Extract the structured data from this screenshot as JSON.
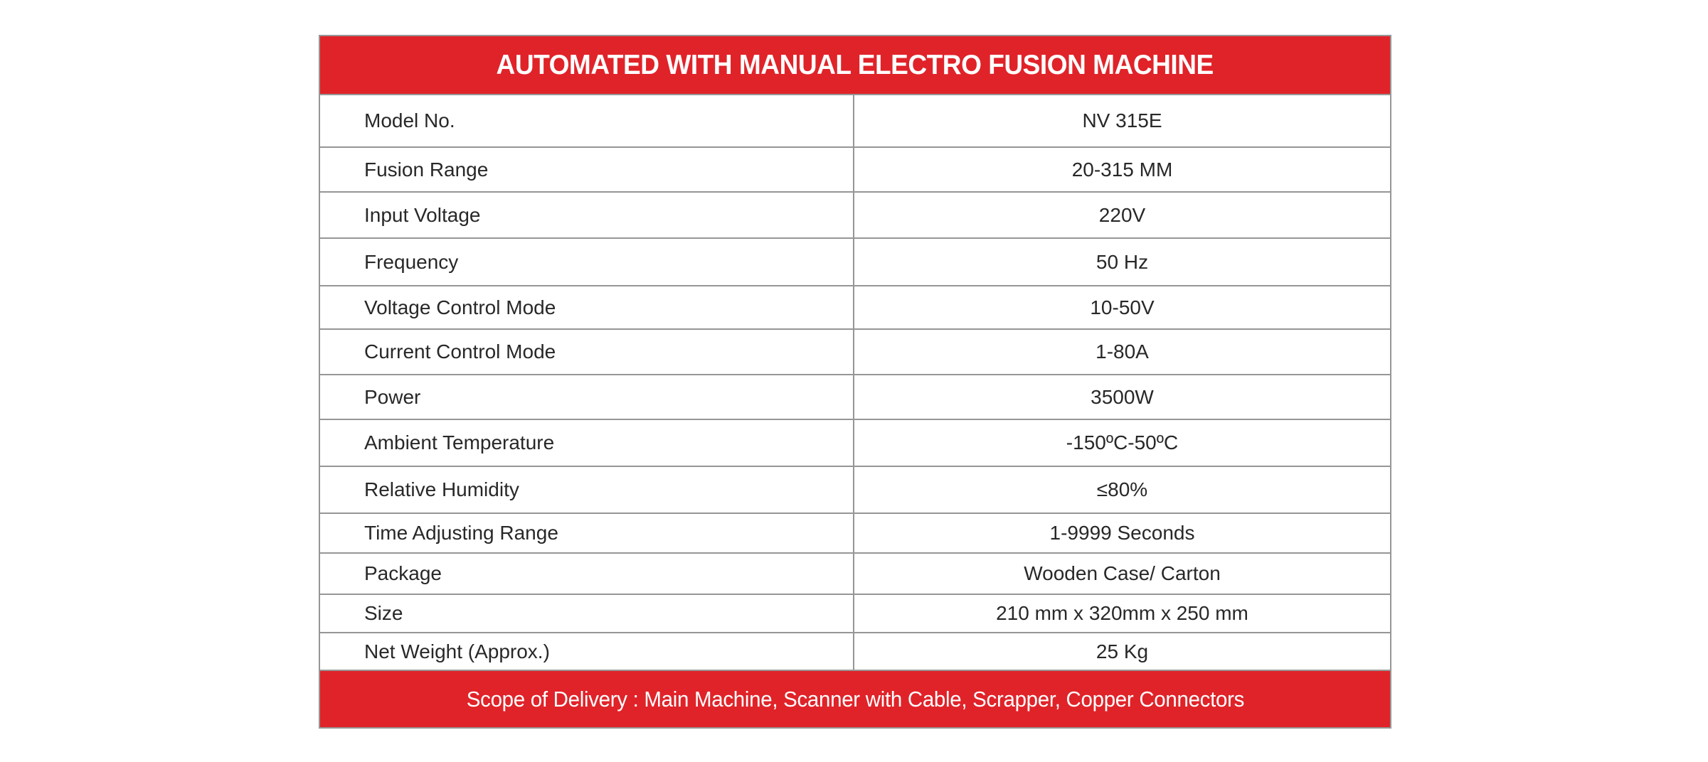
{
  "title": "AUTOMATED WITH MANUAL ELECTRO FUSION MACHINE",
  "footer": "Scope of Delivery : Main Machine, Scanner with Cable, Scrapper, Copper Connectors",
  "colors": {
    "accent_red": "#E02329",
    "border_gray": "#969696",
    "text_dark": "#282828"
  },
  "specs": [
    {
      "label": "Model No.",
      "value": "NV 315E"
    },
    {
      "label": "Fusion Range",
      "value": "20-315 MM"
    },
    {
      "label": "Input Voltage",
      "value": "220V"
    },
    {
      "label": "Frequency",
      "value": "50 Hz"
    },
    {
      "label": "Voltage Control Mode",
      "value": "10-50V"
    },
    {
      "label": "Current Control Mode",
      "value": "1-80A"
    },
    {
      "label": "Power",
      "value": "3500W"
    },
    {
      "label": "Ambient Temperature",
      "value": "-150ºC-50ºC"
    },
    {
      "label": "Relative Humidity",
      "value": "≤80%"
    },
    {
      "label": "Time Adjusting Range",
      "value": "1-9999 Seconds"
    },
    {
      "label": "Package",
      "value": "Wooden Case/ Carton"
    },
    {
      "label": "Size",
      "value": "210 mm x 320mm x 250 mm"
    },
    {
      "label": "Net Weight (Approx.)",
      "value": "25 Kg"
    }
  ]
}
